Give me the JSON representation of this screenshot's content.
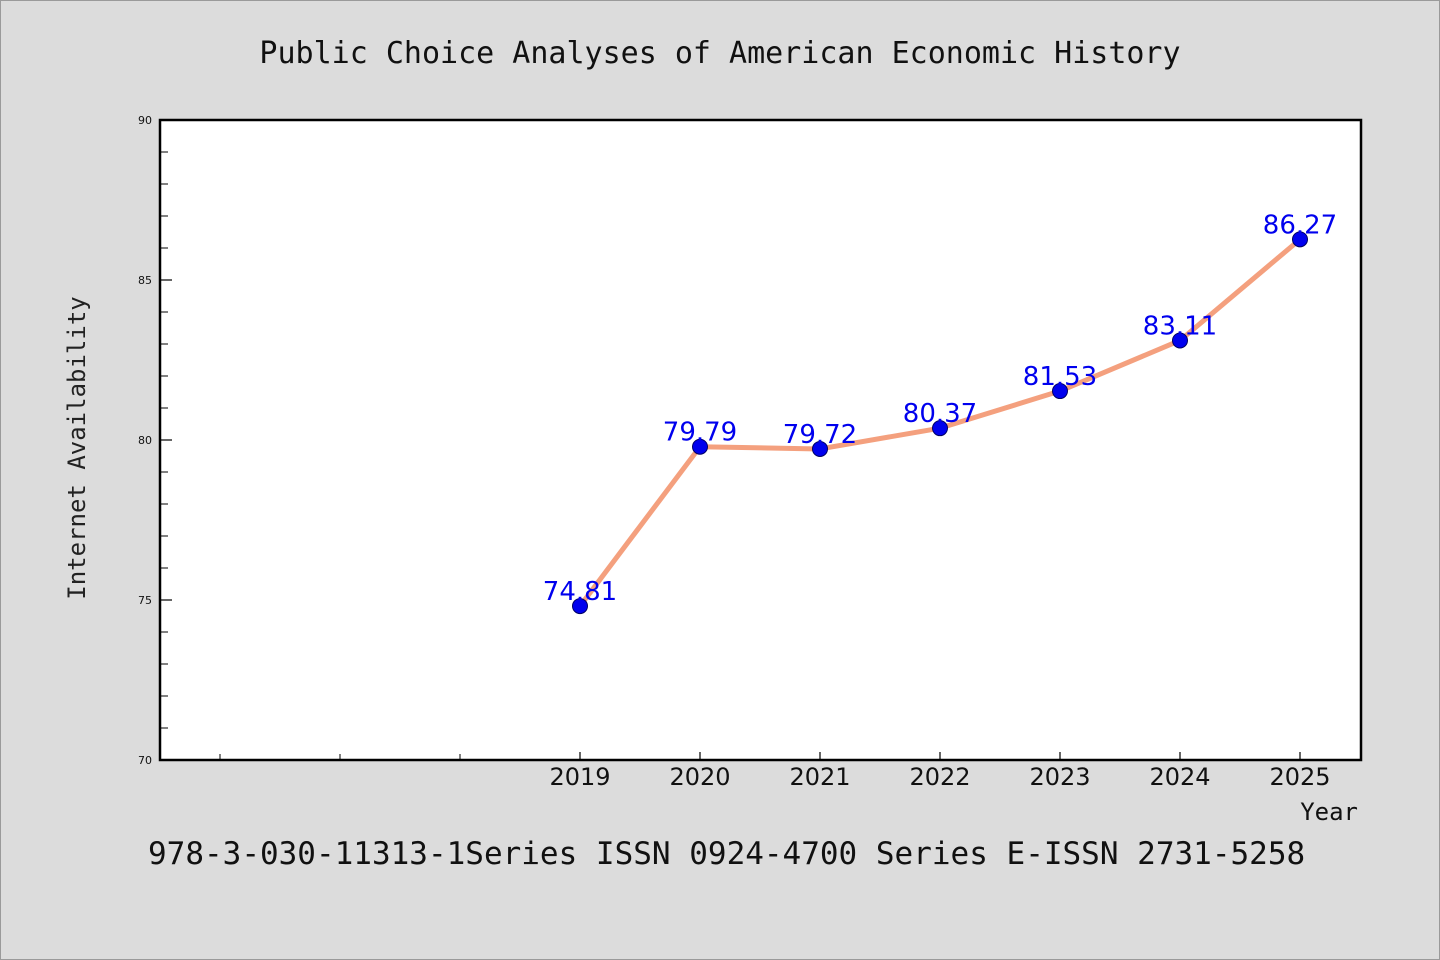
{
  "chart_data": {
    "type": "line",
    "title": "Public Choice Analyses of American Economic History",
    "xlabel": "Year",
    "ylabel": "Internet Availability",
    "categories": [
      "2019",
      "2020",
      "2021",
      "2022",
      "2023",
      "2024",
      "2025"
    ],
    "series": [
      {
        "values": [
          74.81,
          79.79,
          79.72,
          80.37,
          81.53,
          83.11,
          86.27
        ],
        "labels": [
          "74.81",
          "79.79",
          "79.72",
          "80.37",
          "81.53",
          "83.11",
          "86.27"
        ]
      }
    ],
    "ylim": [
      70,
      90
    ],
    "y_ticks": [
      70,
      75,
      80,
      85,
      90
    ],
    "grid": false,
    "legend": "none",
    "colors": {
      "line": "#f4a07e",
      "marker": "#0000ee",
      "label": "#0000ee"
    }
  },
  "footer": "978-3-030-11313-1Series ISSN 0924-4700 Series E-ISSN 2731-5258"
}
